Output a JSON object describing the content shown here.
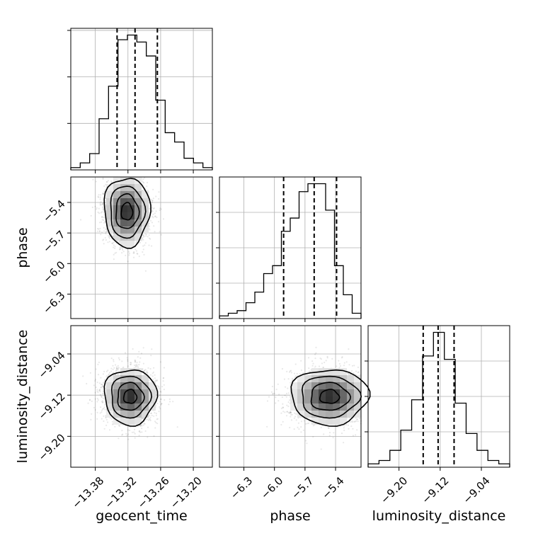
{
  "chart_data": {
    "type": "corner",
    "parameters": [
      "geocent_time",
      "phase",
      "luminosity_distance"
    ],
    "axis_labels": {
      "geocent_time": "geocent_time",
      "phase": "phase",
      "luminosity_distance": "luminosity_distance"
    },
    "ranges": {
      "geocent_time": [
        -13.425,
        -13.165
      ],
      "phase": [
        -6.54,
        -5.15
      ],
      "luminosity_distance": [
        -9.26,
        -8.985
      ]
    },
    "ticks": {
      "geocent_time": [
        -13.38,
        -13.32,
        -13.26,
        -13.2
      ],
      "phase": [
        -6.3,
        -6.0,
        -5.7,
        -5.4
      ],
      "luminosity_distance": [
        -9.2,
        -9.12,
        -9.04
      ]
    },
    "tick_labels": {
      "geocent_time": [
        "−13.38",
        "−13.32",
        "−13.26",
        "−13.20"
      ],
      "phase": [
        "−6.3",
        "−6.0",
        "−5.7",
        "−5.4"
      ],
      "luminosity_distance": [
        "−9.20",
        "−9.12",
        "−9.04"
      ]
    },
    "quantiles": {
      "geocent_time": [
        -13.34,
        -13.307,
        -13.266
      ],
      "phase": [
        -5.91,
        -5.61,
        -5.39
      ],
      "luminosity_distance": [
        -9.153,
        -9.124,
        -9.093
      ]
    },
    "histograms": {
      "geocent_time": [
        1,
        3,
        7,
        22,
        36,
        56,
        58,
        55,
        49,
        30,
        16,
        12,
        5,
        3,
        1
      ],
      "phase": [
        1,
        2,
        3,
        6,
        10,
        17,
        20,
        33,
        38,
        48,
        51,
        51,
        41,
        20,
        9,
        2
      ],
      "luminosity_distance": [
        1,
        2,
        5,
        11,
        20,
        33,
        40,
        32,
        19,
        10,
        5,
        2,
        1
      ]
    },
    "hist_y_ticks": {
      "geocent_time": [
        20,
        40,
        60
      ]
    },
    "grid": true,
    "contour_levels": 4,
    "density_peaks": {
      "phase_vs_geocent_time": {
        "x": -13.322,
        "y": -5.49
      },
      "luminosity_distance_vs_geocent_time": {
        "x": -13.316,
        "y": -9.123
      },
      "luminosity_distance_vs_phase": {
        "x": -5.46,
        "y": -9.123
      }
    }
  }
}
